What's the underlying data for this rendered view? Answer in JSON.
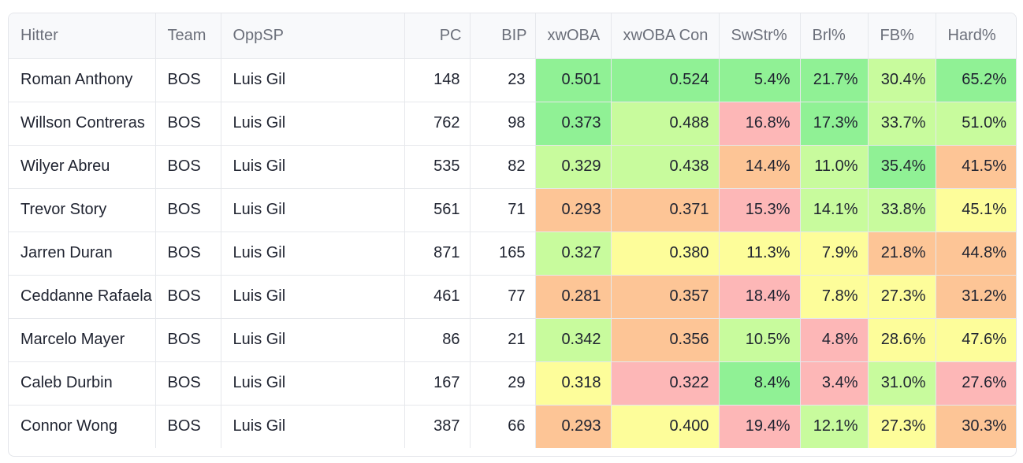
{
  "colors": {
    "green_strong": "#90f195",
    "green": "#c8fb9d",
    "yellow": "#fdfd9a",
    "orange": "#fdc596",
    "red": "#fdb7b7"
  },
  "table": {
    "columns": [
      "Hitter",
      "Team",
      "OppSP",
      "PC",
      "BIP",
      "xwOBA",
      "xwOBA Con",
      "SwStr%",
      "Brl%",
      "FB%",
      "Hard%"
    ],
    "rows": [
      {
        "hitter": "Roman Anthony",
        "team": "BOS",
        "oppsp": "Luis Gil",
        "pc": "148",
        "bip": "23",
        "metrics": [
          {
            "v": "0.501",
            "c": "green_strong"
          },
          {
            "v": "0.524",
            "c": "green_strong"
          },
          {
            "v": "5.4%",
            "c": "green_strong"
          },
          {
            "v": "21.7%",
            "c": "green_strong"
          },
          {
            "v": "30.4%",
            "c": "green"
          },
          {
            "v": "65.2%",
            "c": "green_strong"
          }
        ]
      },
      {
        "hitter": "Willson Contreras",
        "team": "BOS",
        "oppsp": "Luis Gil",
        "pc": "762",
        "bip": "98",
        "metrics": [
          {
            "v": "0.373",
            "c": "green_strong"
          },
          {
            "v": "0.488",
            "c": "green"
          },
          {
            "v": "16.8%",
            "c": "red"
          },
          {
            "v": "17.3%",
            "c": "green_strong"
          },
          {
            "v": "33.7%",
            "c": "green"
          },
          {
            "v": "51.0%",
            "c": "green"
          }
        ]
      },
      {
        "hitter": "Wilyer Abreu",
        "team": "BOS",
        "oppsp": "Luis Gil",
        "pc": "535",
        "bip": "82",
        "metrics": [
          {
            "v": "0.329",
            "c": "green"
          },
          {
            "v": "0.438",
            "c": "green"
          },
          {
            "v": "14.4%",
            "c": "orange"
          },
          {
            "v": "11.0%",
            "c": "green"
          },
          {
            "v": "35.4%",
            "c": "green_strong"
          },
          {
            "v": "41.5%",
            "c": "orange"
          }
        ]
      },
      {
        "hitter": "Trevor Story",
        "team": "BOS",
        "oppsp": "Luis Gil",
        "pc": "561",
        "bip": "71",
        "metrics": [
          {
            "v": "0.293",
            "c": "orange"
          },
          {
            "v": "0.371",
            "c": "orange"
          },
          {
            "v": "15.3%",
            "c": "red"
          },
          {
            "v": "14.1%",
            "c": "green"
          },
          {
            "v": "33.8%",
            "c": "green"
          },
          {
            "v": "45.1%",
            "c": "yellow"
          }
        ]
      },
      {
        "hitter": "Jarren Duran",
        "team": "BOS",
        "oppsp": "Luis Gil",
        "pc": "871",
        "bip": "165",
        "metrics": [
          {
            "v": "0.327",
            "c": "green"
          },
          {
            "v": "0.380",
            "c": "yellow"
          },
          {
            "v": "11.3%",
            "c": "yellow"
          },
          {
            "v": "7.9%",
            "c": "yellow"
          },
          {
            "v": "21.8%",
            "c": "orange"
          },
          {
            "v": "44.8%",
            "c": "orange"
          }
        ]
      },
      {
        "hitter": "Ceddanne Rafaela",
        "team": "BOS",
        "oppsp": "Luis Gil",
        "pc": "461",
        "bip": "77",
        "metrics": [
          {
            "v": "0.281",
            "c": "orange"
          },
          {
            "v": "0.357",
            "c": "orange"
          },
          {
            "v": "18.4%",
            "c": "red"
          },
          {
            "v": "7.8%",
            "c": "yellow"
          },
          {
            "v": "27.3%",
            "c": "yellow"
          },
          {
            "v": "31.2%",
            "c": "orange"
          }
        ]
      },
      {
        "hitter": "Marcelo Mayer",
        "team": "BOS",
        "oppsp": "Luis Gil",
        "pc": "86",
        "bip": "21",
        "metrics": [
          {
            "v": "0.342",
            "c": "green"
          },
          {
            "v": "0.356",
            "c": "orange"
          },
          {
            "v": "10.5%",
            "c": "green"
          },
          {
            "v": "4.8%",
            "c": "red"
          },
          {
            "v": "28.6%",
            "c": "yellow"
          },
          {
            "v": "47.6%",
            "c": "yellow"
          }
        ]
      },
      {
        "hitter": "Caleb Durbin",
        "team": "BOS",
        "oppsp": "Luis Gil",
        "pc": "167",
        "bip": "29",
        "metrics": [
          {
            "v": "0.318",
            "c": "yellow"
          },
          {
            "v": "0.322",
            "c": "red"
          },
          {
            "v": "8.4%",
            "c": "green_strong"
          },
          {
            "v": "3.4%",
            "c": "red"
          },
          {
            "v": "31.0%",
            "c": "green"
          },
          {
            "v": "27.6%",
            "c": "red"
          }
        ]
      },
      {
        "hitter": "Connor Wong",
        "team": "BOS",
        "oppsp": "Luis Gil",
        "pc": "387",
        "bip": "66",
        "metrics": [
          {
            "v": "0.293",
            "c": "orange"
          },
          {
            "v": "0.400",
            "c": "yellow"
          },
          {
            "v": "19.4%",
            "c": "red"
          },
          {
            "v": "12.1%",
            "c": "green"
          },
          {
            "v": "27.3%",
            "c": "yellow"
          },
          {
            "v": "30.3%",
            "c": "orange"
          }
        ]
      }
    ]
  }
}
